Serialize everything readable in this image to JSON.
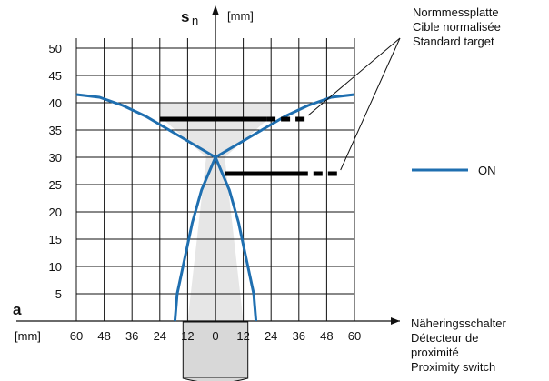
{
  "chart_data": {
    "type": "line",
    "y_axis": {
      "symbol": "s",
      "subscript": "n",
      "unit": "[mm]",
      "ticks": [
        5,
        10,
        15,
        20,
        25,
        30,
        35,
        40,
        45,
        50
      ],
      "range": [
        0,
        52
      ]
    },
    "x_axis": {
      "symbol": "a",
      "unit": "[mm]",
      "ticks": [
        {
          "value": -60,
          "label": "60"
        },
        {
          "value": -48,
          "label": "48"
        },
        {
          "value": -36,
          "label": "36"
        },
        {
          "value": -24,
          "label": "24"
        },
        {
          "value": -12,
          "label": "12"
        },
        {
          "value": 0,
          "label": "0"
        },
        {
          "value": 12,
          "label": "12"
        },
        {
          "value": 24,
          "label": "24"
        },
        {
          "value": 36,
          "label": "36"
        },
        {
          "value": 48,
          "label": "48"
        },
        {
          "value": 60,
          "label": "60"
        }
      ],
      "range": [
        -62,
        62
      ]
    },
    "grid": true,
    "legend": {
      "placement": "right",
      "label": "ON",
      "color": "#1f6fb0"
    },
    "annotations": {
      "target": [
        "Normmessplatte",
        "Cible normalisée",
        "Standard target"
      ],
      "switch": [
        "Näheringsschalter",
        "Détecteur de",
        "proximité",
        "Proximity switch"
      ]
    },
    "series": [
      {
        "role": "left-outer",
        "points": [
          [
            -60,
            41.5
          ],
          [
            -50,
            41
          ],
          [
            -40,
            39.5
          ],
          [
            -30,
            37.5
          ],
          [
            -20,
            35
          ],
          [
            -10,
            32.5
          ],
          [
            0,
            30
          ],
          [
            6,
            24
          ],
          [
            10,
            18
          ],
          [
            14,
            10
          ],
          [
            16.5,
            5
          ],
          [
            17.5,
            0
          ]
        ]
      },
      {
        "role": "right-outer",
        "points": [
          [
            60,
            41.5
          ],
          [
            50,
            41
          ],
          [
            40,
            39.5
          ],
          [
            30,
            37.5
          ],
          [
            20,
            35
          ],
          [
            10,
            32.5
          ],
          [
            0,
            30
          ],
          [
            -6,
            24
          ],
          [
            -10,
            18
          ],
          [
            -14,
            10
          ],
          [
            -16.5,
            5
          ],
          [
            -17.5,
            0
          ]
        ]
      }
    ],
    "shaded_region": {
      "x_range": [
        -12,
        12
      ],
      "y_range": [
        0,
        40
      ],
      "color": "#e6e6e6"
    },
    "targets": [
      {
        "y": 37,
        "x_start": -24,
        "x_solid_end": 22,
        "x_dash_end": 40
      },
      {
        "y": 27,
        "x_start": 4,
        "x_solid_end": 36,
        "x_dash_end": 54
      }
    ],
    "colors": {
      "curve": "#1f6fb0",
      "grid": "#111111",
      "target": "#000000"
    }
  }
}
